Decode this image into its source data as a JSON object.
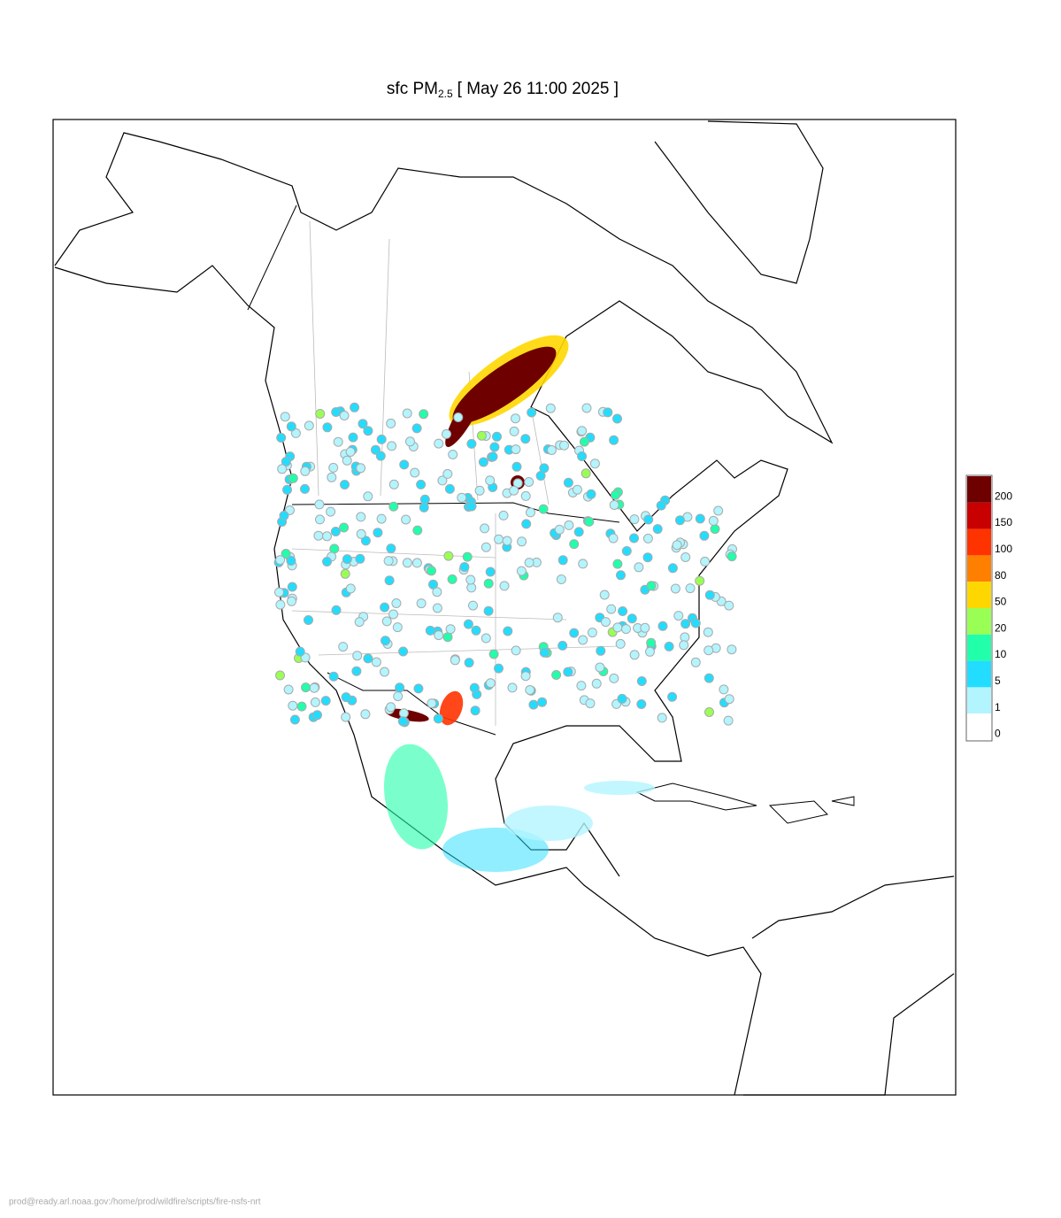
{
  "header": {
    "title_prefix": "sfc PM",
    "title_subscript": "2.5",
    "title_suffix": "[ May 26 11:00 2025 ]"
  },
  "legend": {
    "levels": [
      {
        "label": "200",
        "color": "#6e0000"
      },
      {
        "label": "150",
        "color": "#c80000"
      },
      {
        "label": "100",
        "color": "#ff3300"
      },
      {
        "label": "80",
        "color": "#ff8000"
      },
      {
        "label": "50",
        "color": "#ffd700"
      },
      {
        "label": "20",
        "color": "#99ff55"
      },
      {
        "label": "10",
        "color": "#22ffaa"
      },
      {
        "label": "5",
        "color": "#22ddff"
      },
      {
        "label": "1",
        "color": "#b3f5ff"
      },
      {
        "label": "0",
        "color": "#ffffff"
      }
    ]
  },
  "footer": {
    "path": "prod@ready.arl.noaa.gov:/home/prod/wildfire/scripts/fire-nsfs-nrt"
  }
}
